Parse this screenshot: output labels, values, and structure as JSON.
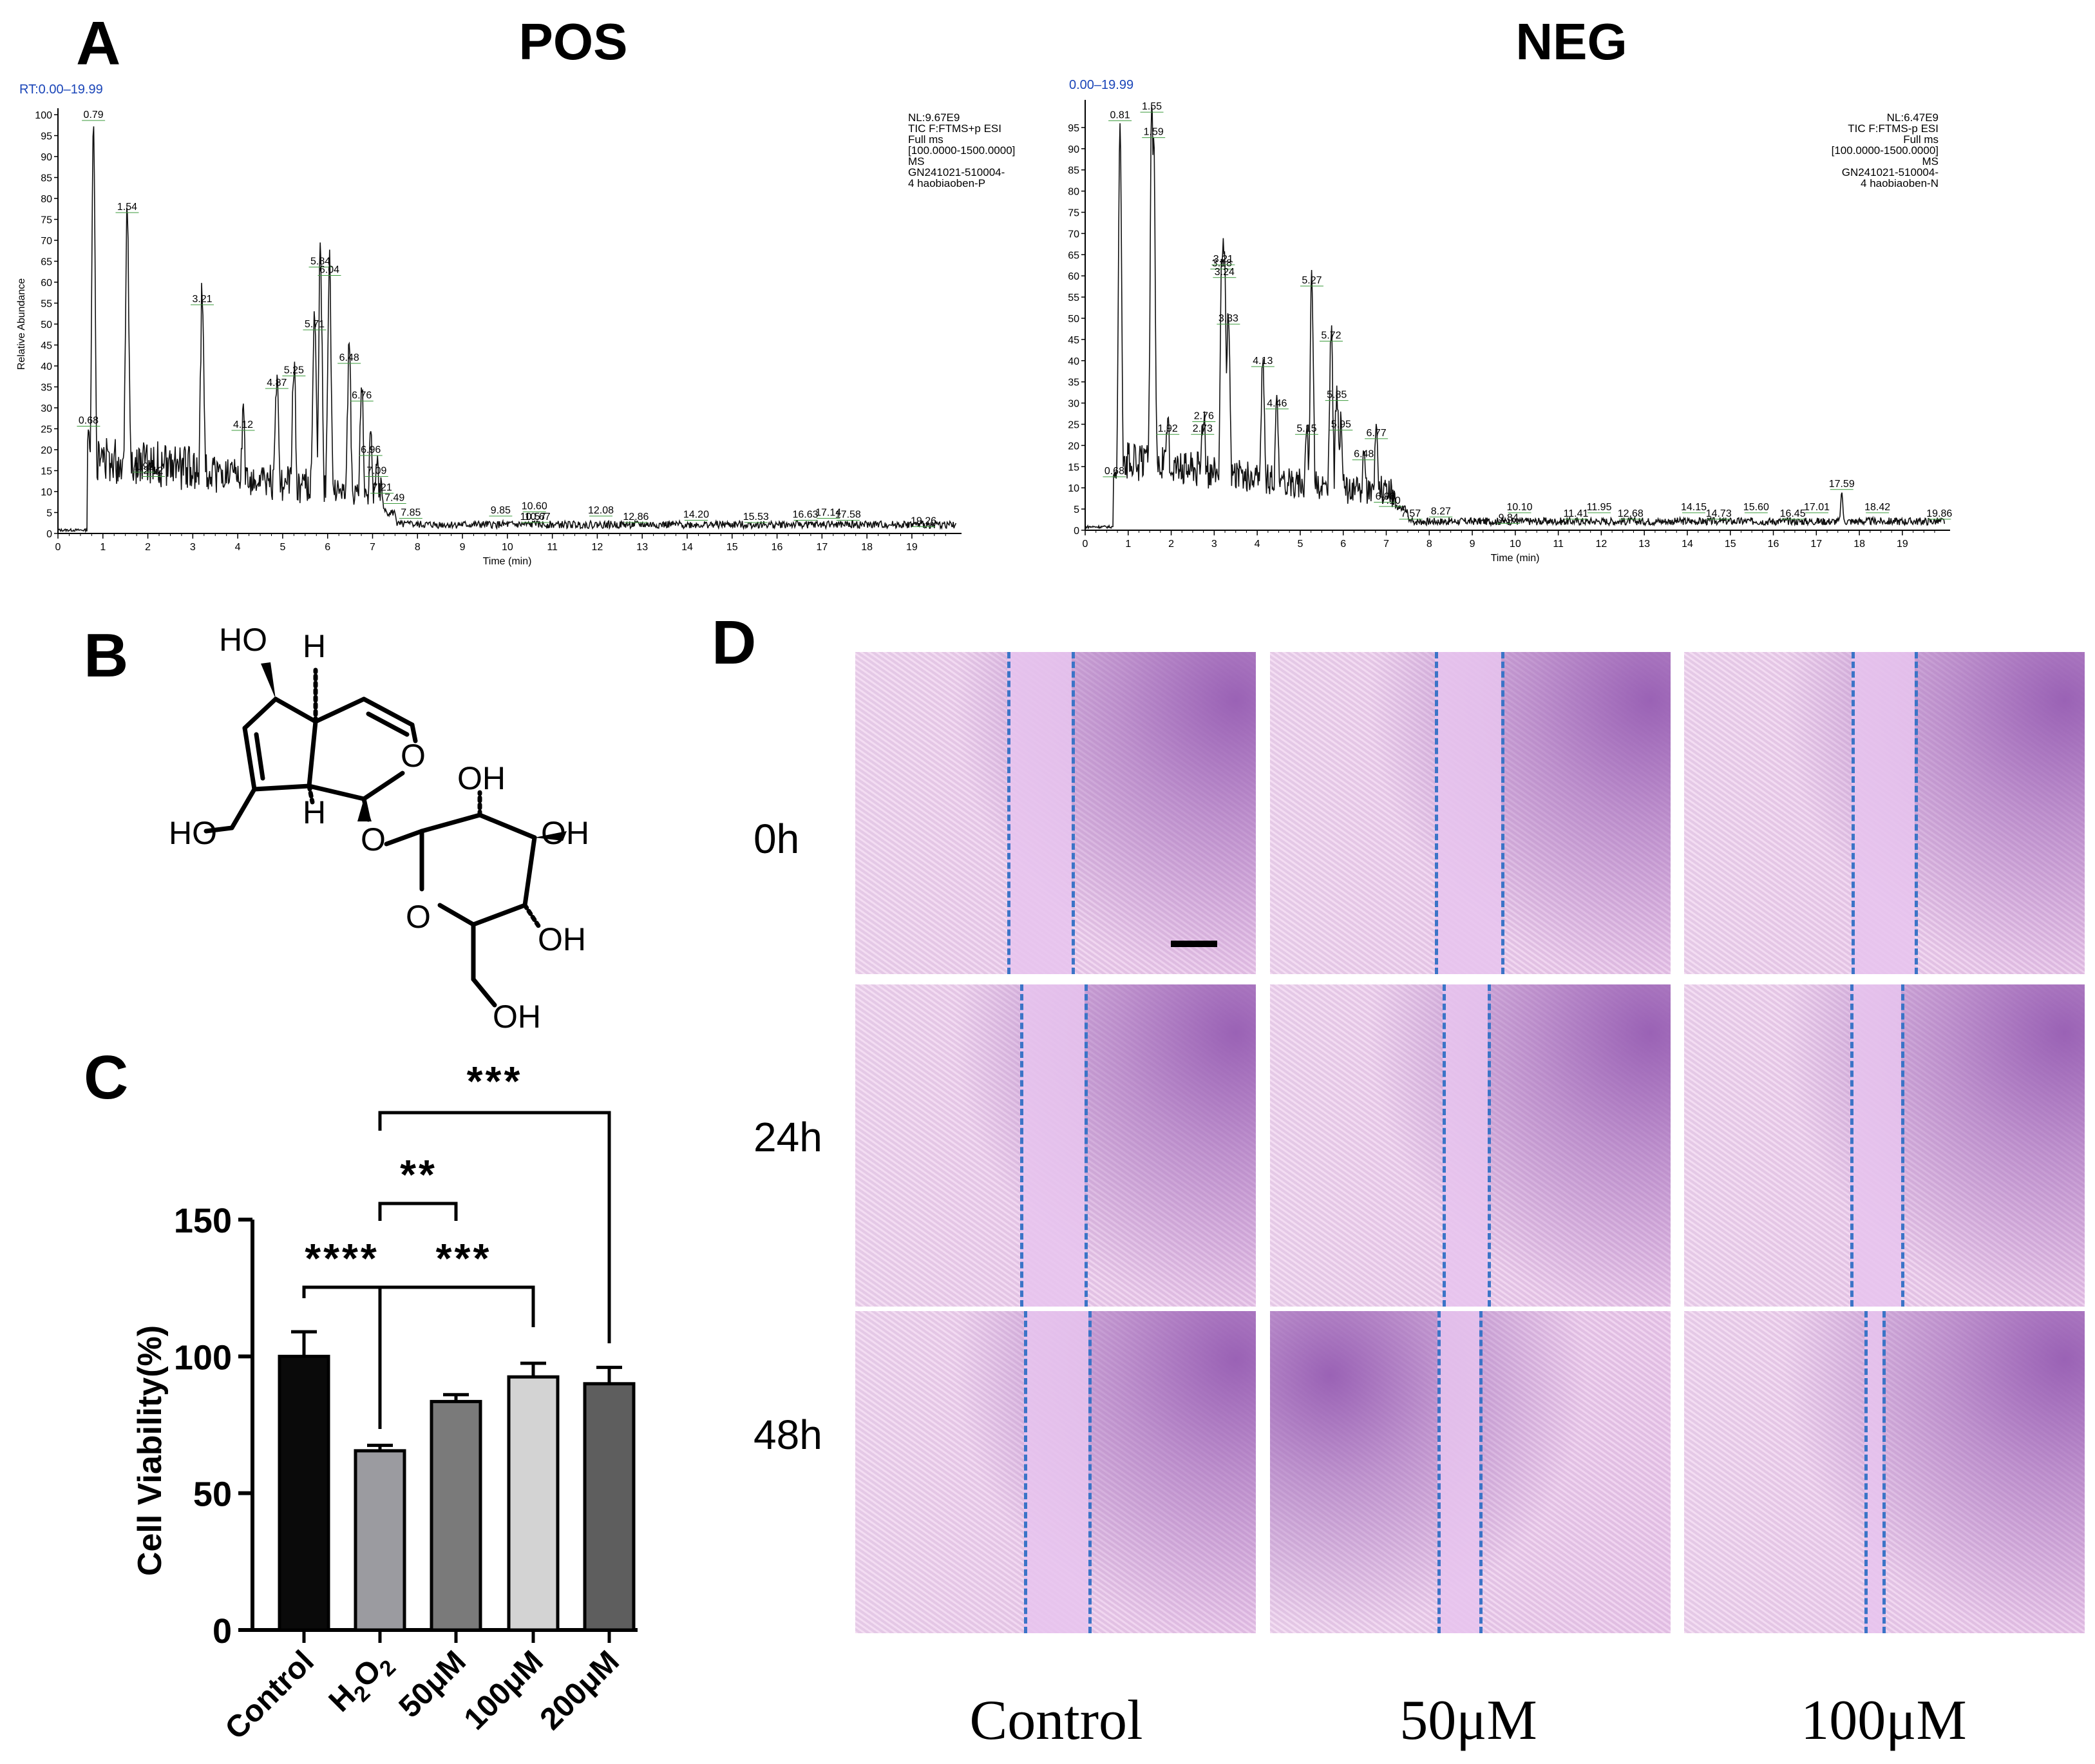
{
  "panels": {
    "A": "A",
    "B": "B",
    "C": "C",
    "D": "D"
  },
  "chromatograms": [
    {
      "id": "pos",
      "title": "POS",
      "rt_range": "RT:0.00–19.99",
      "info": [
        "NL:9.67E9",
        "TIC F:FTMS+p ESI",
        "Full ms",
        "[100.0000-1500.0000]",
        "MS",
        "GN241021-510004-",
        "4 haobiaoben-P"
      ],
      "ylabel": "Relative Abundance",
      "xlabel": "Time (min)",
      "yticks": [
        0,
        5,
        10,
        15,
        20,
        25,
        30,
        35,
        40,
        45,
        50,
        55,
        60,
        65,
        70,
        75,
        80,
        85,
        90,
        95,
        100
      ],
      "xticks": [
        0,
        1,
        2,
        3,
        4,
        5,
        6,
        7,
        8,
        9,
        10,
        11,
        12,
        13,
        14,
        15,
        16,
        17,
        18,
        19
      ],
      "ymax": 100,
      "peaks": [
        {
          "x": 0.68,
          "y": 25,
          "label": "0.68"
        },
        {
          "x": 0.79,
          "y": 98,
          "label": "0.79"
        },
        {
          "x": 1.54,
          "y": 76,
          "label": "1.54"
        },
        {
          "x": 1.92,
          "y": 14,
          "label": "1.92"
        },
        {
          "x": 2.12,
          "y": 13,
          "label": "2.12"
        },
        {
          "x": 3.21,
          "y": 54,
          "label": "3.21"
        },
        {
          "x": 4.12,
          "y": 24,
          "label": "4.12"
        },
        {
          "x": 4.87,
          "y": 34,
          "label": "4.87"
        },
        {
          "x": 5.25,
          "y": 37,
          "label": "5.25"
        },
        {
          "x": 5.71,
          "y": 48,
          "label": "5.71"
        },
        {
          "x": 5.84,
          "y": 63,
          "label": "5.84"
        },
        {
          "x": 6.04,
          "y": 61,
          "label": "6.04"
        },
        {
          "x": 6.48,
          "y": 40,
          "label": "6.48"
        },
        {
          "x": 6.76,
          "y": 31,
          "label": "6.76"
        },
        {
          "x": 6.96,
          "y": 18,
          "label": "6.96"
        },
        {
          "x": 7.09,
          "y": 13,
          "label": "7.09"
        },
        {
          "x": 7.21,
          "y": 9,
          "label": "7.21"
        },
        {
          "x": 7.49,
          "y": 5,
          "label": "7.49"
        },
        {
          "x": 7.85,
          "y": 3,
          "label": "7.85"
        },
        {
          "x": 9.85,
          "y": 2,
          "label": "9.85"
        },
        {
          "x": 10.57,
          "y": 2,
          "label": "10.57"
        },
        {
          "x": 10.6,
          "y": 3,
          "label": "10.60"
        },
        {
          "x": 10.67,
          "y": 2,
          "label": "10.67"
        },
        {
          "x": 12.08,
          "y": 2,
          "label": "12.08"
        },
        {
          "x": 12.86,
          "y": 2,
          "label": "12.86"
        },
        {
          "x": 14.2,
          "y": 1,
          "label": "14.20"
        },
        {
          "x": 15.53,
          "y": 2,
          "label": "15.53"
        },
        {
          "x": 16.63,
          "y": 1,
          "label": "16.63"
        },
        {
          "x": 17.14,
          "y": 3,
          "label": "17.14"
        },
        {
          "x": 17.58,
          "y": 1,
          "label": "17.58"
        },
        {
          "x": 19.26,
          "y": 1,
          "label": "19.26"
        }
      ]
    },
    {
      "id": "neg",
      "title": "NEG",
      "rt_range": "0.00–19.99",
      "info": [
        "NL:6.47E9",
        "TIC F:FTMS-p ESI",
        "Full ms",
        "[100.0000-1500.0000]",
        "MS",
        "GN241021-510004-",
        "4 haobiaoben-N"
      ],
      "ylabel": "",
      "xlabel": "Time (min)",
      "yticks": [
        0,
        5,
        10,
        15,
        20,
        25,
        30,
        35,
        40,
        45,
        50,
        55,
        60,
        65,
        70,
        75,
        80,
        85,
        90,
        95
      ],
      "xticks": [
        0,
        1,
        2,
        3,
        4,
        5,
        6,
        7,
        8,
        9,
        10,
        11,
        12,
        13,
        14,
        15,
        16,
        17,
        18,
        19
      ],
      "ymax": 100,
      "peaks": [
        {
          "x": 0.68,
          "y": 12,
          "label": "0.68"
        },
        {
          "x": 0.81,
          "y": 96,
          "label": "0.81"
        },
        {
          "x": 1.55,
          "y": 98,
          "label": "1.55"
        },
        {
          "x": 1.59,
          "y": 92,
          "label": "1.59"
        },
        {
          "x": 1.92,
          "y": 22,
          "label": "1.92"
        },
        {
          "x": 2.73,
          "y": 22,
          "label": "2.73"
        },
        {
          "x": 2.76,
          "y": 25,
          "label": "2.76"
        },
        {
          "x": 3.18,
          "y": 61,
          "label": "3.18"
        },
        {
          "x": 3.21,
          "y": 62,
          "label": "3.21"
        },
        {
          "x": 3.24,
          "y": 59,
          "label": "3.24"
        },
        {
          "x": 3.33,
          "y": 48,
          "label": "3.33"
        },
        {
          "x": 4.13,
          "y": 38,
          "label": "4.13"
        },
        {
          "x": 4.46,
          "y": 28,
          "label": "4.46"
        },
        {
          "x": 5.15,
          "y": 22,
          "label": "5.15"
        },
        {
          "x": 5.27,
          "y": 57,
          "label": "5.27"
        },
        {
          "x": 5.72,
          "y": 44,
          "label": "5.72"
        },
        {
          "x": 5.85,
          "y": 30,
          "label": "5.85"
        },
        {
          "x": 5.95,
          "y": 23,
          "label": "5.95"
        },
        {
          "x": 6.48,
          "y": 16,
          "label": "6.48"
        },
        {
          "x": 6.77,
          "y": 21,
          "label": "6.77"
        },
        {
          "x": 6.98,
          "y": 6,
          "label": "6.98"
        },
        {
          "x": 7.1,
          "y": 5,
          "label": "7.10"
        },
        {
          "x": 7.57,
          "y": 2,
          "label": "7.57"
        },
        {
          "x": 8.27,
          "y": 1,
          "label": "8.27"
        },
        {
          "x": 9.84,
          "y": 1,
          "label": "9.84"
        },
        {
          "x": 10.1,
          "y": 2,
          "label": "10.10"
        },
        {
          "x": 11.41,
          "y": 2,
          "label": "11.41"
        },
        {
          "x": 11.95,
          "y": 2,
          "label": "11.95"
        },
        {
          "x": 12.68,
          "y": 2,
          "label": "12.68"
        },
        {
          "x": 14.15,
          "y": 2,
          "label": "14.15"
        },
        {
          "x": 14.73,
          "y": 2,
          "label": "14.73"
        },
        {
          "x": 15.6,
          "y": 2,
          "label": "15.60"
        },
        {
          "x": 16.45,
          "y": 2,
          "label": "16.45"
        },
        {
          "x": 17.01,
          "y": 2,
          "label": "17.01"
        },
        {
          "x": 17.59,
          "y": 9,
          "label": "17.59"
        },
        {
          "x": 18.42,
          "y": 2,
          "label": "18.42"
        },
        {
          "x": 19.86,
          "y": 2,
          "label": "19.86"
        }
      ]
    }
  ],
  "structure": {
    "labels": [
      "HO",
      "H",
      "H",
      "O",
      "OH",
      "HO",
      "O",
      "OH",
      "O",
      "OH",
      "OH"
    ]
  },
  "chart_data": {
    "type": "bar",
    "categories": [
      "Control",
      "H2O2",
      "50μM",
      "100μM",
      "200μM"
    ],
    "category_display": [
      {
        "main": "Control"
      },
      {
        "main": "H",
        "sub1": "2",
        "mid": "O",
        "sub2": "2"
      },
      {
        "main": "50μM"
      },
      {
        "main": "100μM"
      },
      {
        "main": "200μM"
      }
    ],
    "values": [
      100,
      65.5,
      83.5,
      92.5,
      90
    ],
    "errors": [
      9,
      2,
      2.5,
      5,
      6
    ],
    "colors": [
      "#0a0a0a",
      "#9b9ba0",
      "#7a7a7a",
      "#d3d3d3",
      "#5e5e5e"
    ],
    "ylabel": "Cell Viability(%)",
    "yticks": [
      0,
      50,
      100,
      150
    ],
    "ylim": [
      0,
      150
    ],
    "significance": [
      {
        "from": 0,
        "to": 1,
        "label": "****",
        "level": 1
      },
      {
        "from": 1,
        "to": 3,
        "label": "***",
        "level": 1
      },
      {
        "from": 1,
        "to": 2,
        "label": "**",
        "level": 2
      },
      {
        "from": 1,
        "to": 4,
        "label": "***",
        "level": 3
      }
    ]
  },
  "wound_assay": {
    "columns": [
      "Control",
      "50μM",
      "100μM"
    ],
    "rows": [
      "0h",
      "24h",
      "48h"
    ]
  },
  "colors": {
    "wound_base": "#ecc8ec",
    "wound_dark": "#9a62b5",
    "wound_gap": "#e8c4ef",
    "dash": "#3b74c7",
    "rt_blue": "#1a45b8",
    "annot_green": "#3a9a3a"
  }
}
